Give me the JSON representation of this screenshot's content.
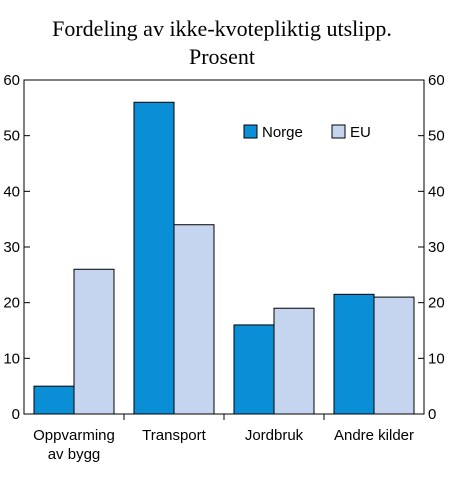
{
  "chart_data": {
    "type": "bar",
    "title": [
      "Fordeling av ikke-kvotepliktig utslipp.",
      "Prosent"
    ],
    "categories": [
      [
        "Oppvarming",
        "av bygg"
      ],
      [
        "Transport"
      ],
      [
        "Jordbruk"
      ],
      [
        "Andre kilder"
      ]
    ],
    "series": [
      {
        "name": "Norge",
        "values": [
          5,
          56,
          16,
          21.5
        ],
        "color": "#0a8fd6"
      },
      {
        "name": "EU",
        "values": [
          26,
          34,
          19,
          21
        ],
        "color": "#c6d5ef"
      }
    ],
    "ylim": [
      0,
      60
    ],
    "yticks": [
      0,
      10,
      20,
      30,
      40,
      50,
      60
    ],
    "y_axis_both_sides": true,
    "grid": false,
    "legend_position": "top-right"
  }
}
